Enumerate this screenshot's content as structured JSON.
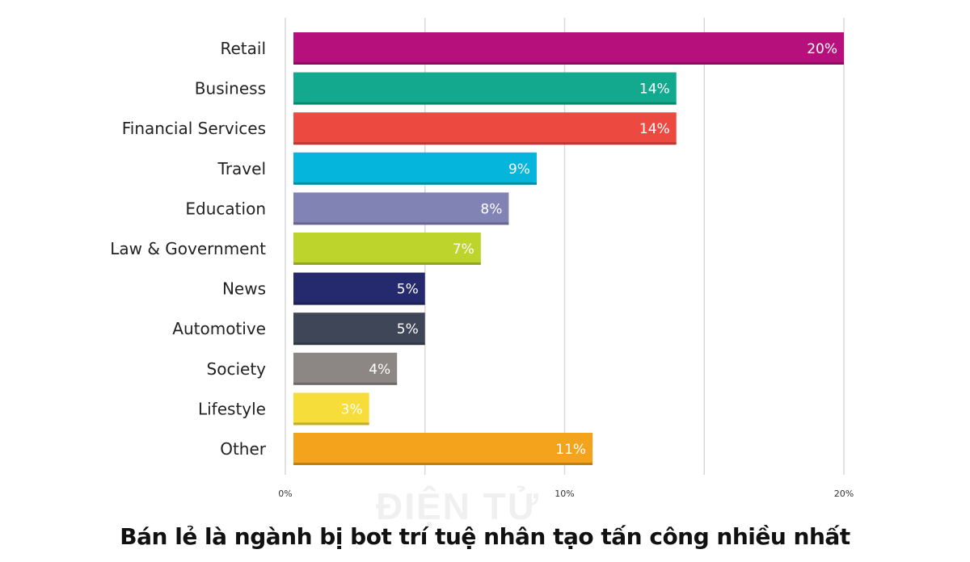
{
  "chart_data": {
    "type": "bar",
    "orientation": "horizontal",
    "categories": [
      "Retail",
      "Business",
      "Financial Services",
      "Travel",
      "Education",
      "Law & Government",
      "News",
      "Automotive",
      "Society",
      "Lifestyle",
      "Other"
    ],
    "values": [
      20,
      14,
      14,
      9,
      8,
      7,
      5,
      5,
      4,
      3,
      11
    ],
    "value_labels": [
      "20%",
      "14%",
      "14%",
      "9%",
      "8%",
      "7%",
      "5%",
      "5%",
      "4%",
      "3%",
      "11%"
    ],
    "colors": [
      "#b5107c",
      "#13a98e",
      "#ec4a40",
      "#06b5dc",
      "#8183b5",
      "#bcd42b",
      "#242a6d",
      "#3f4658",
      "#8c8685",
      "#f6dd3a",
      "#f4a31c"
    ],
    "xlim": [
      0,
      20
    ],
    "xticks": [
      0,
      10,
      20
    ],
    "xtick_labels": [
      "0%",
      "10%",
      "20%"
    ],
    "grid": true,
    "title": "",
    "xlabel": "",
    "ylabel": ""
  },
  "caption": "Bán lẻ là ngành bị bot trí tuệ nhân tạo tấn công nhiều nhất",
  "watermark": "ĐIỆN TỬ"
}
